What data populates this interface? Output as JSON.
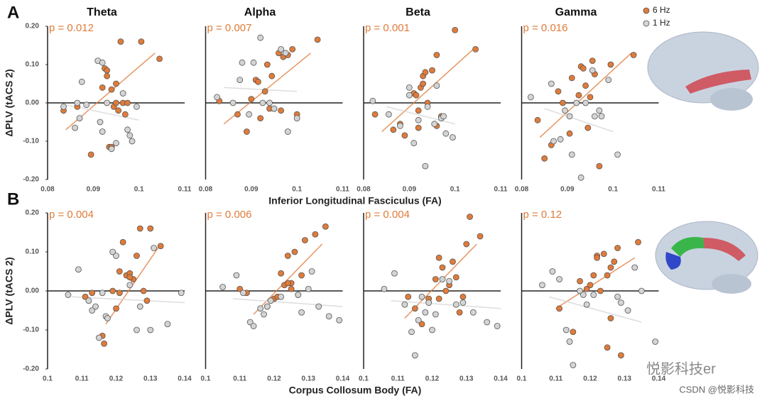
{
  "rows": [
    {
      "label": "A",
      "ylabel": "ΔPLV (tACS 2)",
      "xlabel": "Inferior Longitudinal Fasciculus (FA)"
    },
    {
      "label": "B",
      "ylabel": "ΔPLV (tACS 2)",
      "xlabel": "Corpus Collosum Body (FA)"
    }
  ],
  "watermark": [
    "悦影科技er",
    "CSDN @悦影科技"
  ],
  "chart_data": [
    {
      "type": "scatter",
      "title": "Theta",
      "annotation": "p = 0.012",
      "xlim": [
        0.08,
        0.11
      ],
      "xticks": [
        0.08,
        0.09,
        0.1,
        0.11
      ],
      "ylim": [
        -0.2,
        0.2
      ],
      "yticks": [
        {
          "value": 0.2,
          "label": "0.20"
        },
        {
          "value": 0.1,
          "label": "0.10"
        },
        {
          "value": 0,
          "label": "0.00"
        },
        {
          "value": -0.1,
          "label": "-0.10"
        },
        {
          "value": -0.2,
          "label": "-0.20"
        }
      ],
      "series": [
        {
          "color": "#e07b39",
          "x": [
            0.0835,
            0.0865,
            0.0895,
            0.092,
            0.0925,
            0.093,
            0.0935,
            0.094,
            0.0945,
            0.095,
            0.095,
            0.0955,
            0.096,
            0.0965,
            0.097,
            0.0975,
            0.1005,
            0.1045,
            0.094,
            0.093
          ],
          "values": [
            -0.02,
            -0.01,
            -0.135,
            0.04,
            0.09,
            0.085,
            -0.115,
            0.035,
            -0.01,
            0.05,
            0.0,
            -0.02,
            0.16,
            0.0,
            -0.03,
            0.0,
            0.16,
            0.115,
            -0.115,
            0.07
          ],
          "fit": {
            "x": [
              0.084,
              0.1035
            ],
            "y": [
              -0.07,
              0.13
            ]
          }
        },
        {
          "color": "#d4d4d4",
          "x": [
            0.0835,
            0.086,
            0.0865,
            0.087,
            0.0875,
            0.0885,
            0.091,
            0.0915,
            0.092,
            0.093,
            0.094,
            0.095,
            0.0965,
            0.0975,
            0.098,
            0.0985,
            0.0995,
            0.092
          ],
          "values": [
            -0.01,
            -0.065,
            0.0,
            -0.04,
            0.055,
            -0.005,
            0.11,
            -0.05,
            -0.075,
            0.0,
            -0.12,
            -0.105,
            0.025,
            -0.07,
            -0.085,
            -0.1,
            -0.01,
            0.105
          ],
          "fit": {
            "x": [
              0.084,
              0.1
            ],
            "y": [
              -0.005,
              -0.045
            ]
          }
        }
      ]
    },
    {
      "type": "scatter",
      "title": "Alpha",
      "annotation": "p = 0.007",
      "xlim": [
        0.08,
        0.11
      ],
      "xticks": [
        0.08,
        0.09,
        0.1,
        0.11
      ],
      "ylim": [
        -0.2,
        0.2
      ],
      "series": [
        {
          "color": "#e07b39",
          "x": [
            0.083,
            0.087,
            0.089,
            0.09,
            0.091,
            0.0915,
            0.092,
            0.093,
            0.0935,
            0.0945,
            0.095,
            0.096,
            0.0965,
            0.097,
            0.098,
            0.099,
            0.1,
            0.1045,
            0.094
          ],
          "values": [
            0.005,
            -0.03,
            -0.075,
            0.01,
            0.06,
            0.055,
            -0.04,
            0.03,
            0.1,
            0.07,
            -0.015,
            0.13,
            -0.02,
            0.12,
            0.125,
            0.14,
            -0.03,
            0.165,
            -0.015
          ],
          "fit": {
            "x": [
              0.084,
              0.103
            ],
            "y": [
              -0.055,
              0.13
            ]
          }
        },
        {
          "color": "#d4d4d4",
          "x": [
            0.0825,
            0.086,
            0.0875,
            0.0895,
            0.0905,
            0.092,
            0.0925,
            0.094,
            0.095,
            0.0965,
            0.0975,
            0.098,
            0.1,
            0.088
          ],
          "values": [
            0.015,
            0.0,
            0.06,
            -0.03,
            0.105,
            0.17,
            0.0,
            0.0,
            -0.015,
            0.14,
            0.13,
            -0.075,
            -0.04,
            0.105
          ],
          "fit": {
            "x": [
              0.084,
              0.1
            ],
            "y": [
              0.04,
              0.03
            ]
          }
        }
      ]
    },
    {
      "type": "scatter",
      "title": "Beta",
      "annotation": "p = 0.001",
      "xlim": [
        0.08,
        0.11
      ],
      "xticks": [
        0.08,
        0.09,
        0.1,
        0.11
      ],
      "ylim": [
        -0.2,
        0.2
      ],
      "series": [
        {
          "color": "#e07b39",
          "x": [
            0.0825,
            0.0865,
            0.088,
            0.089,
            0.091,
            0.0915,
            0.092,
            0.0925,
            0.093,
            0.093,
            0.0935,
            0.094,
            0.095,
            0.096,
            0.096,
            0.097,
            0.1,
            0.1045,
            0.092
          ],
          "values": [
            -0.03,
            -0.07,
            -0.055,
            -0.085,
            0.025,
            0.02,
            -0.02,
            0.04,
            0.05,
            0.07,
            0.08,
            0.0,
            0.085,
            0.125,
            -0.06,
            -0.035,
            0.19,
            0.14,
            -0.065
          ],
          "fit": {
            "x": [
              0.084,
              0.104
            ],
            "y": [
              -0.075,
              0.14
            ]
          }
        },
        {
          "color": "#d4d4d4",
          "x": [
            0.082,
            0.0855,
            0.088,
            0.09,
            0.091,
            0.092,
            0.0935,
            0.094,
            0.0955,
            0.096,
            0.097,
            0.0975,
            0.098,
            0.0995,
            0.09
          ],
          "values": [
            0.005,
            -0.03,
            -0.06,
            0.02,
            -0.105,
            -0.045,
            -0.165,
            -0.01,
            -0.055,
            0.045,
            -0.04,
            -0.035,
            -0.08,
            -0.09,
            0.04
          ],
          "fit": {
            "x": [
              0.085,
              0.1
            ],
            "y": [
              -0.01,
              -0.055
            ]
          }
        }
      ]
    },
    {
      "type": "scatter",
      "title": "Gamma",
      "annotation": "p = 0.016",
      "xlim": [
        0.08,
        0.11
      ],
      "xticks": [
        0.08,
        0.09,
        0.1,
        0.11
      ],
      "ylim": [
        -0.2,
        0.2
      ],
      "series": [
        {
          "name": "6 Hz",
          "color": "#e07b39",
          "x": [
            0.0835,
            0.085,
            0.0865,
            0.088,
            0.089,
            0.0905,
            0.091,
            0.0925,
            0.093,
            0.0935,
            0.094,
            0.0945,
            0.095,
            0.0955,
            0.096,
            0.097,
            0.0995,
            0.1045
          ],
          "values": [
            -0.045,
            -0.145,
            -0.11,
            0.03,
            0.0,
            -0.08,
            0.065,
            0.02,
            0.095,
            0.09,
            0.045,
            -0.065,
            0.015,
            0.11,
            0.075,
            -0.165,
            0.1,
            0.125
          ],
          "fit": {
            "x": [
              0.084,
              0.104
            ],
            "y": [
              -0.09,
              0.13
            ]
          }
        },
        {
          "name": "1 Hz",
          "color": "#d4d4d4",
          "x": [
            0.082,
            0.0865,
            0.087,
            0.0895,
            0.0905,
            0.091,
            0.092,
            0.093,
            0.094,
            0.0955,
            0.096,
            0.097,
            0.0975,
            0.099,
            0.101,
            0.0885
          ],
          "values": [
            0.015,
            0.05,
            -0.1,
            -0.02,
            -0.035,
            -0.135,
            0.0,
            -0.195,
            0.0,
            0.085,
            -0.035,
            -0.02,
            -0.035,
            0.06,
            -0.135,
            -0.095
          ],
          "fit": {
            "x": [
              0.085,
              0.1
            ],
            "y": [
              -0.015,
              -0.075
            ]
          }
        }
      ]
    },
    {
      "type": "scatter",
      "annotation": "p = 0.004",
      "xlim": [
        0.1,
        0.14
      ],
      "xticks": [
        0.1,
        0.11,
        0.12,
        0.13,
        0.14
      ],
      "ylim": [
        -0.2,
        0.2
      ],
      "yticks": [
        {
          "value": 0.2,
          "label": "0.20"
        },
        {
          "value": 0.1,
          "label": "0.10"
        },
        {
          "value": 0,
          "label": "0.00"
        },
        {
          "value": -0.1,
          "label": "-0.10"
        },
        {
          "value": -0.2,
          "label": "-0.20"
        }
      ],
      "series": [
        {
          "color": "#e07b39",
          "x": [
            0.111,
            0.113,
            0.116,
            0.1165,
            0.119,
            0.12,
            0.121,
            0.122,
            0.123,
            0.124,
            0.125,
            0.126,
            0.127,
            0.128,
            0.129,
            0.13,
            0.133,
            0.121,
            0.124
          ],
          "values": [
            -0.015,
            -0.005,
            -0.115,
            -0.135,
            0.0,
            -0.045,
            0.05,
            0.125,
            0.04,
            0.045,
            0.03,
            0.09,
            0.16,
            0.0,
            -0.025,
            0.16,
            0.115,
            -0.005,
            0.035
          ],
          "fit": {
            "x": [
              0.117,
              0.133
            ],
            "y": [
              -0.085,
              0.12
            ]
          }
        },
        {
          "color": "#d4d4d4",
          "x": [
            0.106,
            0.109,
            0.112,
            0.113,
            0.114,
            0.115,
            0.117,
            0.1175,
            0.119,
            0.12,
            0.124,
            0.126,
            0.127,
            0.13,
            0.131,
            0.135,
            0.139,
            0.116
          ],
          "values": [
            -0.01,
            0.055,
            -0.025,
            -0.05,
            -0.04,
            -0.12,
            -0.065,
            -0.07,
            0.1,
            0.09,
            0.015,
            -0.1,
            -0.04,
            -0.1,
            0.11,
            -0.085,
            -0.005,
            -0.005
          ],
          "fit": {
            "x": [
              0.107,
              0.14
            ],
            "y": [
              -0.015,
              -0.03
            ]
          }
        }
      ]
    },
    {
      "type": "scatter",
      "annotation": "p = 0.006",
      "xlim": [
        0.1,
        0.14
      ],
      "xticks": [
        0.1,
        0.11,
        0.12,
        0.13,
        0.14
      ],
      "ylim": [
        -0.2,
        0.2
      ],
      "series": [
        {
          "color": "#e07b39",
          "x": [
            0.11,
            0.112,
            0.118,
            0.12,
            0.121,
            0.122,
            0.123,
            0.124,
            0.125,
            0.125,
            0.126,
            0.127,
            0.128,
            0.129,
            0.132,
            0.135,
            0.124
          ],
          "values": [
            0.005,
            -0.005,
            -0.04,
            -0.02,
            -0.015,
            0.045,
            0.015,
            0.09,
            0.02,
            0.005,
            0.1,
            -0.01,
            0.04,
            0.13,
            0.145,
            0.165,
            0.02
          ],
          "fit": {
            "x": [
              0.114,
              0.134
            ],
            "y": [
              -0.06,
              0.12
            ]
          }
        },
        {
          "color": "#d4d4d4",
          "x": [
            0.105,
            0.109,
            0.111,
            0.113,
            0.114,
            0.116,
            0.117,
            0.118,
            0.119,
            0.122,
            0.127,
            0.128,
            0.13,
            0.131,
            0.133,
            0.136,
            0.139
          ],
          "values": [
            0.01,
            0.04,
            -0.005,
            -0.08,
            -0.09,
            -0.045,
            -0.06,
            -0.04,
            -0.025,
            -0.015,
            -0.01,
            -0.055,
            0.005,
            0.05,
            -0.04,
            -0.065,
            -0.075
          ],
          "fit": {
            "x": [
              0.108,
              0.14
            ],
            "y": [
              -0.02,
              -0.04
            ]
          }
        }
      ]
    },
    {
      "type": "scatter",
      "annotation": "p = 0.004",
      "xlim": [
        0.1,
        0.14
      ],
      "xticks": [
        0.1,
        0.11,
        0.12,
        0.13,
        0.14
      ],
      "ylim": [
        -0.2,
        0.2
      ],
      "series": [
        {
          "color": "#e07b39",
          "x": [
            0.113,
            0.115,
            0.117,
            0.119,
            0.121,
            0.122,
            0.122,
            0.124,
            0.125,
            0.126,
            0.127,
            0.128,
            0.129,
            0.13,
            0.131,
            0.134,
            0.123
          ],
          "values": [
            -0.015,
            -0.045,
            -0.085,
            -0.02,
            0.03,
            0.085,
            -0.02,
            0.0,
            0.015,
            0.075,
            0.035,
            -0.055,
            -0.015,
            0.12,
            0.19,
            0.14,
            0.06
          ],
          "fit": {
            "x": [
              0.112,
              0.133
            ],
            "y": [
              -0.07,
              0.12
            ]
          }
        },
        {
          "color": "#d4d4d4",
          "x": [
            0.106,
            0.109,
            0.112,
            0.114,
            0.115,
            0.116,
            0.117,
            0.118,
            0.119,
            0.121,
            0.123,
            0.125,
            0.127,
            0.129,
            0.132,
            0.136,
            0.139,
            0.12
          ],
          "values": [
            0.005,
            0.045,
            -0.035,
            -0.105,
            -0.165,
            -0.075,
            -0.015,
            -0.055,
            -0.03,
            -0.06,
            0.03,
            0.025,
            -0.035,
            -0.03,
            -0.055,
            -0.08,
            -0.09,
            -0.1
          ],
          "fit": {
            "x": [
              0.108,
              0.14
            ],
            "y": [
              -0.025,
              -0.045
            ]
          }
        }
      ]
    },
    {
      "type": "scatter",
      "annotation": "p = 0.12",
      "xlim": [
        0.1,
        0.14
      ],
      "xticks": [
        0.1,
        0.11,
        0.12,
        0.13,
        0.14
      ],
      "ylim": [
        -0.2,
        0.2
      ],
      "series": [
        {
          "color": "#e07b39",
          "x": [
            0.111,
            0.115,
            0.117,
            0.119,
            0.12,
            0.121,
            0.122,
            0.123,
            0.124,
            0.125,
            0.126,
            0.127,
            0.128,
            0.126,
            0.125,
            0.129,
            0.134,
            0.122
          ],
          "values": [
            -0.045,
            -0.105,
            0.025,
            0.005,
            0.015,
            0.04,
            0.09,
            0.0,
            0.095,
            0.04,
            0.06,
            0.075,
            0.11,
            -0.07,
            -0.145,
            -0.165,
            0.125,
            0.085
          ],
          "fit": {
            "x": [
              0.11,
              0.133
            ],
            "y": [
              -0.045,
              0.085
            ]
          }
        },
        {
          "color": "#d4d4d4",
          "x": [
            0.106,
            0.109,
            0.111,
            0.113,
            0.114,
            0.115,
            0.117,
            0.118,
            0.119,
            0.121,
            0.128,
            0.129,
            0.131,
            0.133,
            0.135,
            0.139
          ],
          "values": [
            0.015,
            0.05,
            0.03,
            -0.1,
            -0.13,
            -0.19,
            0.0,
            -0.01,
            -0.035,
            -0.01,
            -0.015,
            -0.03,
            -0.05,
            0.06,
            0.0,
            -0.13
          ],
          "fit": {
            "x": [
              0.108,
              0.135
            ],
            "y": [
              -0.015,
              -0.08
            ]
          }
        }
      ]
    }
  ]
}
